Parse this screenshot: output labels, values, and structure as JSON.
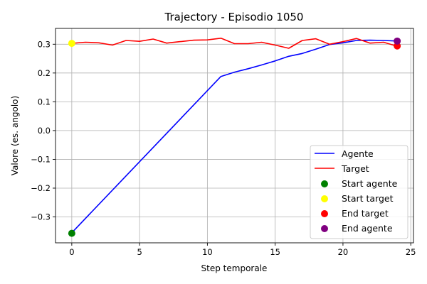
{
  "chart_data": {
    "type": "line",
    "title": "Trajectory - Episodio 1050",
    "xlabel": "Step temporale",
    "ylabel": "Valore (es. angolo)",
    "xlim": [
      -1.2,
      25.2
    ],
    "ylim": [
      -0.39,
      0.355
    ],
    "xticks": [
      0,
      5,
      10,
      15,
      20,
      25
    ],
    "xtick_labels": [
      "0",
      "5",
      "10",
      "15",
      "20",
      "25"
    ],
    "yticks": [
      -0.3,
      -0.2,
      -0.1,
      0.0,
      0.1,
      0.2,
      0.3
    ],
    "ytick_labels": [
      "−0.3",
      "−0.2",
      "−0.1",
      "0.0",
      "0.1",
      "0.2",
      "0.3"
    ],
    "grid": true,
    "legend_position": "bottom-right",
    "series": [
      {
        "name": "Agente",
        "kind": "line",
        "color": "#0000ff",
        "x": [
          0,
          11,
          12,
          13,
          14,
          15,
          16,
          17,
          18,
          19,
          20,
          21,
          22,
          23,
          24
        ],
        "y": [
          -0.355,
          0.188,
          0.203,
          0.215,
          0.228,
          0.242,
          0.258,
          0.268,
          0.283,
          0.299,
          0.305,
          0.313,
          0.314,
          0.313,
          0.311
        ]
      },
      {
        "name": "Target",
        "kind": "line",
        "color": "#ff0000",
        "x": [
          0,
          1,
          2,
          3,
          4,
          5,
          6,
          7,
          8,
          9,
          10,
          11,
          12,
          13,
          14,
          15,
          16,
          17,
          18,
          19,
          20,
          21,
          22,
          23,
          24
        ],
        "y": [
          0.303,
          0.307,
          0.305,
          0.297,
          0.313,
          0.31,
          0.318,
          0.304,
          0.309,
          0.314,
          0.315,
          0.321,
          0.302,
          0.302,
          0.307,
          0.297,
          0.286,
          0.313,
          0.319,
          0.3,
          0.309,
          0.32,
          0.304,
          0.307,
          0.293
        ]
      },
      {
        "name": "Start agente",
        "kind": "point",
        "color": "#008000",
        "x": [
          0
        ],
        "y": [
          -0.357
        ]
      },
      {
        "name": "Start target",
        "kind": "point",
        "color": "#ffff00",
        "x": [
          0
        ],
        "y": [
          0.303
        ]
      },
      {
        "name": "End target",
        "kind": "point",
        "color": "#ff0000",
        "x": [
          24
        ],
        "y": [
          0.294
        ]
      },
      {
        "name": "End agente",
        "kind": "point",
        "color": "#800080",
        "x": [
          24
        ],
        "y": [
          0.311
        ]
      }
    ]
  }
}
